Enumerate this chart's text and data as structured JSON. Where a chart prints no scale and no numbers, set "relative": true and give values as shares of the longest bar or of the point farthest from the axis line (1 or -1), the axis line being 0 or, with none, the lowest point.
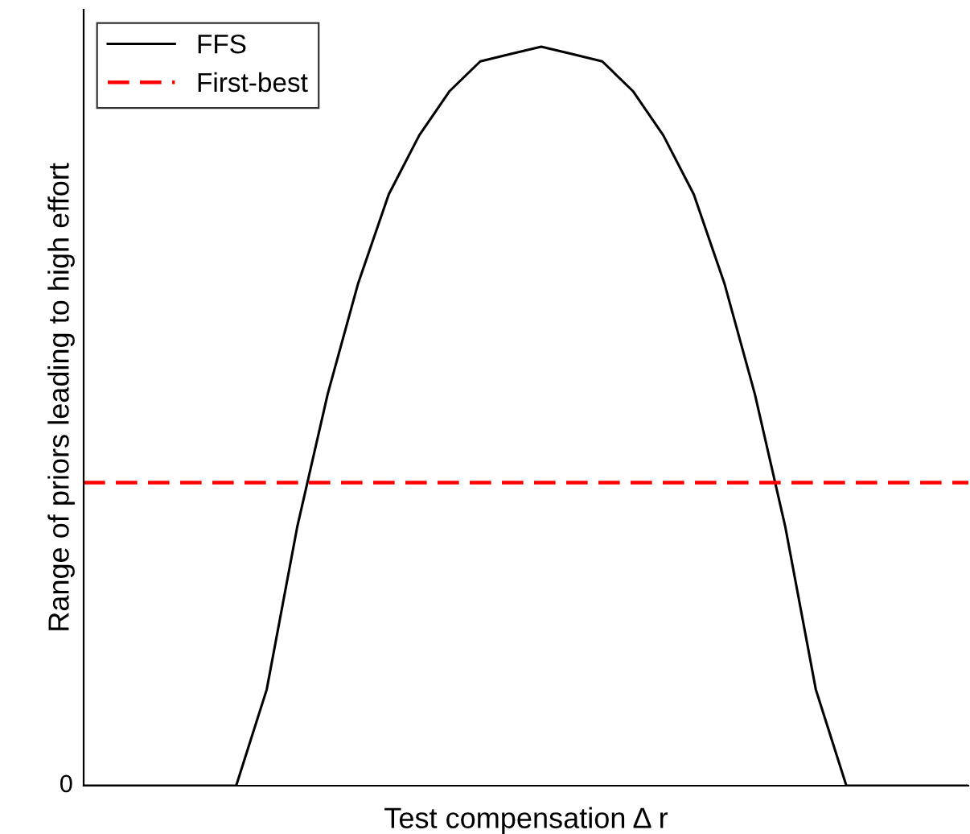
{
  "chart_data": {
    "type": "line",
    "relative": true,
    "xlabel": "Test compensation Δ r",
    "ylabel": "Range of priors leading to high effort",
    "categories": [
      null,
      null,
      null,
      null,
      null,
      null,
      null,
      null,
      null,
      null,
      null,
      null,
      null,
      null,
      null,
      null,
      null,
      null,
      null,
      null,
      null,
      null,
      null,
      null,
      null,
      null,
      null,
      null,
      null,
      null
    ],
    "series": [
      {
        "name": "FFS",
        "color": "#000000",
        "values": [
          0,
          0,
          0,
          0,
          0,
          0,
          0.13,
          0.35,
          0.53,
          0.68,
          0.8,
          0.88,
          0.94,
          0.98,
          0.99,
          1,
          0.99,
          0.98,
          0.94,
          0.88,
          0.8,
          0.68,
          0.53,
          0.35,
          0.13,
          0,
          0,
          0,
          0,
          0
        ]
      }
    ],
    "ref_lines": [
      {
        "axis": "y",
        "value": 0.41,
        "label": "First-best",
        "color": "#ff0000",
        "line_style": "dashed"
      }
    ],
    "annotations": [
      "0"
    ],
    "legend": "top left",
    "grid": false,
    "marker": "none",
    "line_style": "solid"
  }
}
